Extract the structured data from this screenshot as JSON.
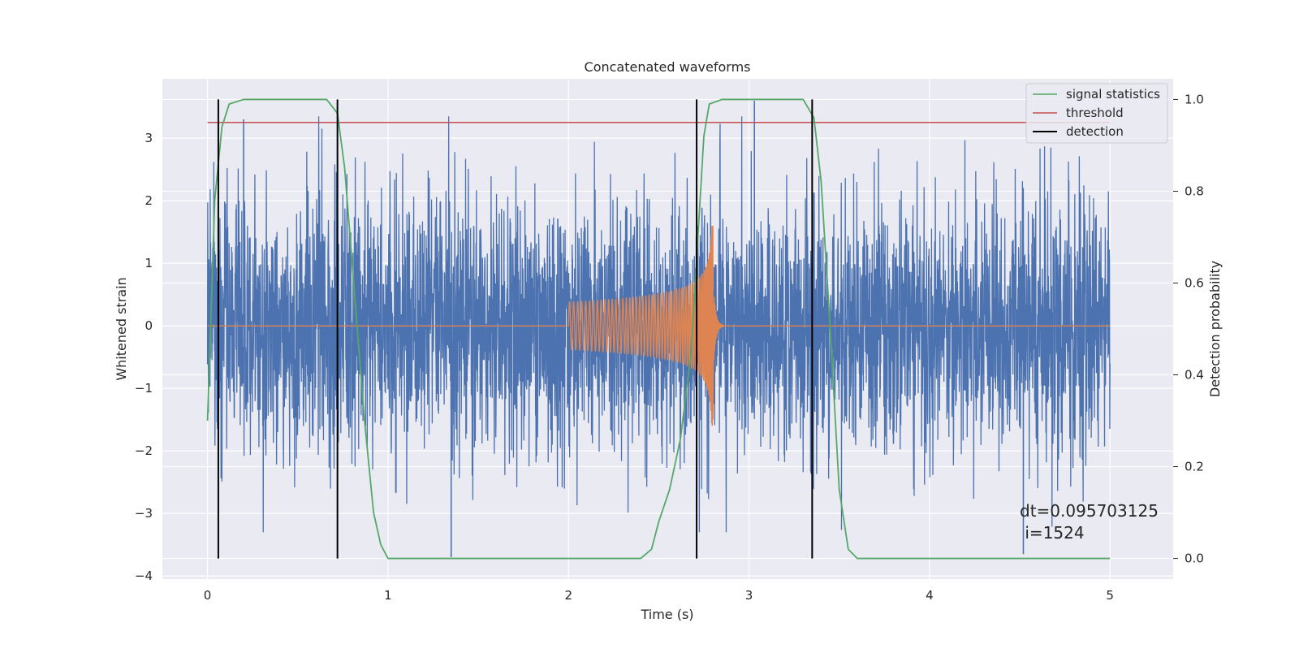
{
  "chart_data": {
    "type": "line",
    "title": "Concatenated waveforms",
    "xlabel": "Time (s)",
    "ylabel": "Whitened strain",
    "ylabel_right": "Detection probability",
    "xlim": [
      -0.25,
      5.35
    ],
    "ylim": [
      -4.05,
      3.95
    ],
    "ylim_right": [
      -0.045,
      1.045
    ],
    "x_ticks": [
      0,
      1,
      2,
      3,
      4,
      5
    ],
    "y_ticks": [
      -4,
      -3,
      -2,
      -1,
      0,
      1,
      2,
      3
    ],
    "y_right_ticks": [
      0.0,
      0.2,
      0.4,
      0.6,
      0.8,
      1.0
    ],
    "x_tick_labels": [
      "0",
      "1",
      "2",
      "3",
      "4",
      "5"
    ],
    "y_tick_labels": [
      "−4",
      "−3",
      "−2",
      "−1",
      "0",
      "1",
      "2",
      "3"
    ],
    "y_right_tick_labels": [
      "0.0",
      "0.2",
      "0.4",
      "0.6",
      "0.8",
      "1.0"
    ],
    "grid": true,
    "legend_position": "top-right",
    "series": [
      {
        "name": "",
        "kind": "noise",
        "color": "#4c72b0",
        "x_range": [
          0,
          5
        ],
        "envelope_y": [
          -3.3,
          3.35
        ],
        "notable_points": [
          {
            "x": 1.35,
            "y": -3.7
          },
          {
            "x": 3.03,
            "y": 3.6
          },
          {
            "x": 4.52,
            "y": -3.65
          },
          {
            "x": 0.2,
            "y": 3.3
          }
        ]
      },
      {
        "name": "",
        "kind": "chirp",
        "color": "#dd8452",
        "x_range": [
          0,
          5
        ],
        "chirp_start": 2.0,
        "merger": 2.8,
        "peak_y": 1.6,
        "trough_y": -1.5
      },
      {
        "name": "signal statistics",
        "axis": "right",
        "color": "#55a868",
        "points": [
          [
            0.0,
            0.3
          ],
          [
            0.04,
            0.78
          ],
          [
            0.08,
            0.94
          ],
          [
            0.12,
            0.99
          ],
          [
            0.2,
            1.0
          ],
          [
            0.5,
            1.0
          ],
          [
            0.66,
            1.0
          ],
          [
            0.72,
            0.97
          ],
          [
            0.76,
            0.85
          ],
          [
            0.82,
            0.55
          ],
          [
            0.87,
            0.3
          ],
          [
            0.92,
            0.1
          ],
          [
            0.96,
            0.03
          ],
          [
            1.0,
            0.0
          ],
          [
            2.4,
            0.0
          ],
          [
            2.46,
            0.02
          ],
          [
            2.5,
            0.08
          ],
          [
            2.56,
            0.15
          ],
          [
            2.62,
            0.26
          ],
          [
            2.68,
            0.45
          ],
          [
            2.72,
            0.72
          ],
          [
            2.75,
            0.92
          ],
          [
            2.78,
            0.99
          ],
          [
            2.85,
            1.0
          ],
          [
            3.3,
            1.0
          ],
          [
            3.36,
            0.96
          ],
          [
            3.4,
            0.82
          ],
          [
            3.45,
            0.5
          ],
          [
            3.5,
            0.15
          ],
          [
            3.55,
            0.02
          ],
          [
            3.6,
            0.0
          ],
          [
            5.0,
            0.0
          ]
        ]
      },
      {
        "name": "threshold",
        "axis": "right",
        "color": "#c44e52",
        "value": 0.95,
        "x_range": [
          0,
          5
        ]
      },
      {
        "name": "detection",
        "axis": "right",
        "color": "#000000",
        "x": [
          0.06,
          0.72,
          2.71,
          3.35
        ],
        "y_range": [
          0,
          1
        ]
      }
    ],
    "annotations": [
      {
        "text": "dt=0.095703125",
        "x": 4.5,
        "y": -3.05
      },
      {
        "text": " i=1524",
        "x": 4.5,
        "y": -3.4
      }
    ]
  },
  "colors": {
    "plot_background": "#eaeaf2",
    "grid": "#ffffff",
    "noise": "#4c72b0",
    "chirp": "#dd8452",
    "statistics": "#55a868",
    "threshold": "#c44e52",
    "detection": "#000000"
  }
}
